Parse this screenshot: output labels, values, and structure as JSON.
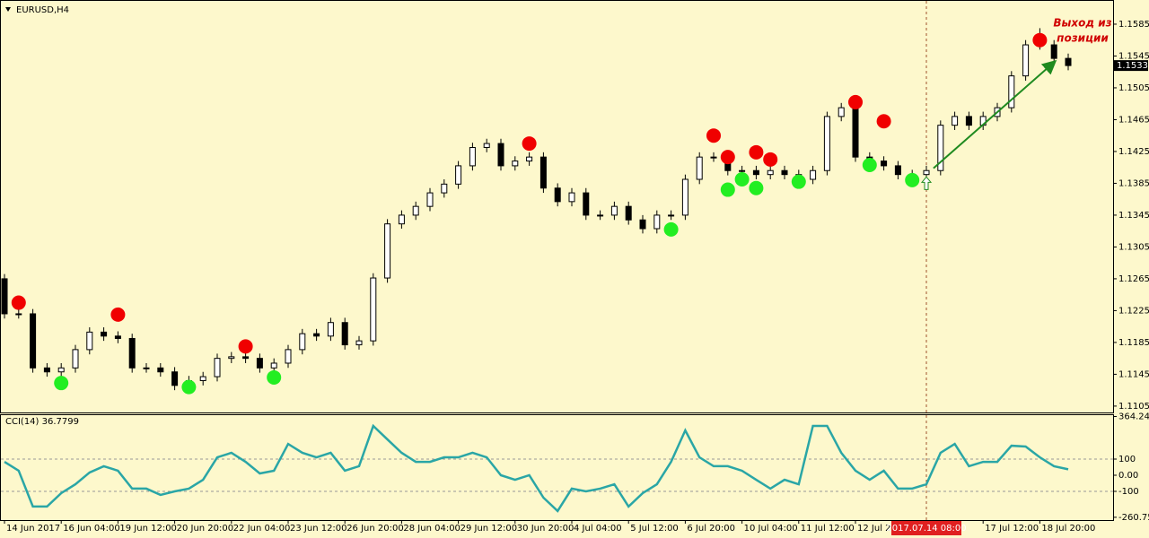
{
  "chart_data": {
    "type": "candlestick",
    "title": "EURUSD,H4",
    "background": "#fdf8cc",
    "candles": [
      [
        1.1265,
        1.1271,
        1.1215,
        1.1221
      ],
      [
        1.1221,
        1.1227,
        1.1215,
        1.1221
      ],
      [
        1.1221,
        1.1227,
        1.1147,
        1.1153
      ],
      [
        1.1153,
        1.1159,
        1.1142,
        1.1148
      ],
      [
        1.1148,
        1.1159,
        1.1142,
        1.1153
      ],
      [
        1.1153,
        1.1182,
        1.1147,
        1.1176
      ],
      [
        1.1176,
        1.1204,
        1.117,
        1.1198
      ],
      [
        1.1198,
        1.1204,
        1.1187,
        1.1193
      ],
      [
        1.1193,
        1.1199,
        1.1184,
        1.119
      ],
      [
        1.119,
        1.1196,
        1.1147,
        1.1153
      ],
      [
        1.1153,
        1.1159,
        1.1147,
        1.1153
      ],
      [
        1.1153,
        1.1159,
        1.1142,
        1.1148
      ],
      [
        1.1148,
        1.1154,
        1.1125,
        1.1131
      ],
      [
        1.1131,
        1.1143,
        1.1125,
        1.1137
      ],
      [
        1.1137,
        1.1148,
        1.1131,
        1.1142
      ],
      [
        1.1142,
        1.1171,
        1.1136,
        1.1165
      ],
      [
        1.1165,
        1.1173,
        1.1159,
        1.1167
      ],
      [
        1.1167,
        1.1173,
        1.1159,
        1.1165
      ],
      [
        1.1165,
        1.1171,
        1.1147,
        1.1153
      ],
      [
        1.1153,
        1.1165,
        1.1147,
        1.1159
      ],
      [
        1.1159,
        1.1182,
        1.1153,
        1.1176
      ],
      [
        1.1176,
        1.1202,
        1.117,
        1.1196
      ],
      [
        1.1196,
        1.1202,
        1.1187,
        1.1193
      ],
      [
        1.1193,
        1.1216,
        1.1187,
        1.121
      ],
      [
        1.121,
        1.1216,
        1.1176,
        1.1182
      ],
      [
        1.1182,
        1.1193,
        1.1176,
        1.1187
      ],
      [
        1.1187,
        1.1272,
        1.1181,
        1.1266
      ],
      [
        1.1266,
        1.134,
        1.126,
        1.1334
      ],
      [
        1.1334,
        1.1351,
        1.1328,
        1.1345
      ],
      [
        1.1345,
        1.1362,
        1.1339,
        1.1356
      ],
      [
        1.1356,
        1.1379,
        1.135,
        1.1373
      ],
      [
        1.1373,
        1.139,
        1.1367,
        1.1384
      ],
      [
        1.1384,
        1.1413,
        1.1378,
        1.1407
      ],
      [
        1.1407,
        1.1436,
        1.1401,
        1.143
      ],
      [
        1.143,
        1.1441,
        1.1424,
        1.1435
      ],
      [
        1.1435,
        1.1441,
        1.1401,
        1.1407
      ],
      [
        1.1407,
        1.1419,
        1.1401,
        1.1413
      ],
      [
        1.1413,
        1.1424,
        1.1407,
        1.1418
      ],
      [
        1.1418,
        1.1424,
        1.1373,
        1.1379
      ],
      [
        1.1379,
        1.1385,
        1.1356,
        1.1362
      ],
      [
        1.1362,
        1.1379,
        1.1356,
        1.1373
      ],
      [
        1.1373,
        1.1379,
        1.1339,
        1.1345
      ],
      [
        1.1345,
        1.1351,
        1.1339,
        1.1345
      ],
      [
        1.1345,
        1.1362,
        1.1339,
        1.1356
      ],
      [
        1.1356,
        1.1362,
        1.1333,
        1.1339
      ],
      [
        1.1339,
        1.1345,
        1.1322,
        1.1328
      ],
      [
        1.1328,
        1.1351,
        1.1322,
        1.1345
      ],
      [
        1.1345,
        1.1351,
        1.1339,
        1.1345
      ],
      [
        1.1345,
        1.1396,
        1.1339,
        1.139
      ],
      [
        1.139,
        1.1424,
        1.1384,
        1.1418
      ],
      [
        1.1418,
        1.1424,
        1.1412,
        1.1418
      ],
      [
        1.1418,
        1.1424,
        1.1395,
        1.1401
      ],
      [
        1.1401,
        1.1407,
        1.1395,
        1.1401
      ],
      [
        1.1401,
        1.1407,
        1.139,
        1.1396
      ],
      [
        1.1396,
        1.1407,
        1.139,
        1.1401
      ],
      [
        1.1401,
        1.1407,
        1.139,
        1.1396
      ],
      [
        1.1396,
        1.1402,
        1.1384,
        1.139
      ],
      [
        1.139,
        1.1407,
        1.1384,
        1.1401
      ],
      [
        1.1401,
        1.1475,
        1.1395,
        1.1469
      ],
      [
        1.1469,
        1.1486,
        1.1463,
        1.148
      ],
      [
        1.148,
        1.1486,
        1.1412,
        1.1418
      ],
      [
        1.1418,
        1.1424,
        1.1407,
        1.1413
      ],
      [
        1.1413,
        1.1419,
        1.1401,
        1.1407
      ],
      [
        1.1407,
        1.1413,
        1.139,
        1.1396
      ],
      [
        1.1396,
        1.1402,
        1.139,
        1.1396
      ],
      [
        1.1396,
        1.1407,
        1.139,
        1.1401
      ],
      [
        1.1401,
        1.1464,
        1.1395,
        1.1458
      ],
      [
        1.1458,
        1.1475,
        1.1452,
        1.1469
      ],
      [
        1.1469,
        1.1475,
        1.1452,
        1.1458
      ],
      [
        1.1458,
        1.1475,
        1.1452,
        1.1469
      ],
      [
        1.1469,
        1.1486,
        1.1463,
        1.148
      ],
      [
        1.148,
        1.1526,
        1.1474,
        1.152
      ],
      [
        1.152,
        1.1565,
        1.1514,
        1.1559
      ],
      [
        1.1559,
        1.158,
        1.1553,
        1.1559
      ],
      [
        1.1559,
        1.1565,
        1.1536,
        1.1542
      ],
      [
        1.1542,
        1.1548,
        1.1527,
        1.1533
      ]
    ],
    "categories": [
      "14 Jun 2017",
      null,
      null,
      null,
      "16 Jun 04:00",
      null,
      null,
      null,
      "19 Jun 12:00",
      null,
      null,
      null,
      "20 Jun 20:00",
      null,
      null,
      null,
      "22 Jun 04:00",
      null,
      null,
      null,
      "23 Jun 12:00",
      null,
      null,
      null,
      "26 Jun 20:00",
      null,
      null,
      null,
      "28 Jun 04:00",
      null,
      null,
      null,
      "29 Jun 12:00",
      null,
      null,
      null,
      "30 Jun 20:00",
      null,
      null,
      null,
      "4 Jul 04:00",
      null,
      null,
      null,
      "5 Jul 12:00",
      null,
      null,
      null,
      "6 Jul 20:00",
      null,
      null,
      null,
      "10 Jul 04:00",
      null,
      null,
      null,
      "11 Jul 12:00",
      null,
      null,
      null,
      "12 Jul 2",
      null,
      null,
      null,
      null,
      "2017.07.14 08:00",
      null,
      null,
      null,
      "17 Jul 12:00",
      null,
      null,
      null,
      "18 Jul 20:00",
      null,
      null
    ],
    "crosshair_index": 65,
    "ylim": [
      1.1097,
      1.1612
    ],
    "yticks": [
      1.1585,
      1.1545,
      1.1505,
      1.1465,
      1.1425,
      1.1385,
      1.1345,
      1.1305,
      1.1265,
      1.1225,
      1.1185,
      1.1145,
      1.1105
    ],
    "sell_signals": [
      [
        1,
        1.1235
      ],
      [
        8,
        1.122
      ],
      [
        17,
        1.118
      ],
      [
        37,
        1.1435
      ],
      [
        50,
        1.1445
      ],
      [
        51,
        1.1418
      ],
      [
        53,
        1.1424
      ],
      [
        54,
        1.1415
      ],
      [
        60,
        1.1487
      ],
      [
        62,
        1.1463
      ],
      [
        73,
        1.1565
      ]
    ],
    "buy_signals": [
      [
        4,
        1.1134
      ],
      [
        13,
        1.1129
      ],
      [
        19,
        1.1141
      ],
      [
        47,
        1.1327
      ],
      [
        51,
        1.1377
      ],
      [
        52,
        1.139
      ],
      [
        53,
        1.1379
      ],
      [
        56,
        1.1387
      ],
      [
        61,
        1.1408
      ],
      [
        64,
        1.1389
      ]
    ],
    "entry_marker": [
      65,
      1.1384
    ],
    "trend_arrow": {
      "from": [
        65.5,
        1.1404
      ],
      "to": [
        74,
        1.1537
      ],
      "color": "#1f8a1f"
    },
    "annotation": [
      "Выход из",
      "позиции"
    ],
    "indicator": {
      "type": "line",
      "title": "CCI(14) 36.7799",
      "color": "#2aa6a6",
      "ylim": [
        -278,
        378
      ],
      "yticks": [
        364.2405,
        100,
        {
          "value": 0,
          "label": "0.00"
        },
        -100,
        -260.7557
      ],
      "levels": [
        100,
        -100
      ],
      "values": [
        83,
        28,
        -194,
        -194,
        -111,
        -56,
        17,
        56,
        28,
        -83,
        -83,
        -122,
        -100,
        -83,
        -28,
        111,
        139,
        83,
        11,
        28,
        194,
        139,
        111,
        139,
        28,
        56,
        306,
        222,
        139,
        83,
        83,
        111,
        111,
        139,
        111,
        0,
        -28,
        0,
        -139,
        -222,
        -83,
        -100,
        -83,
        -56,
        -194,
        -111,
        -56,
        83,
        278,
        111,
        56,
        56,
        28,
        -28,
        -83,
        -28,
        -56,
        306,
        306,
        139,
        28,
        -28,
        28,
        -83,
        -83,
        -56,
        139,
        194,
        56,
        83,
        83,
        183,
        178,
        111,
        56,
        36.7799
      ]
    }
  }
}
